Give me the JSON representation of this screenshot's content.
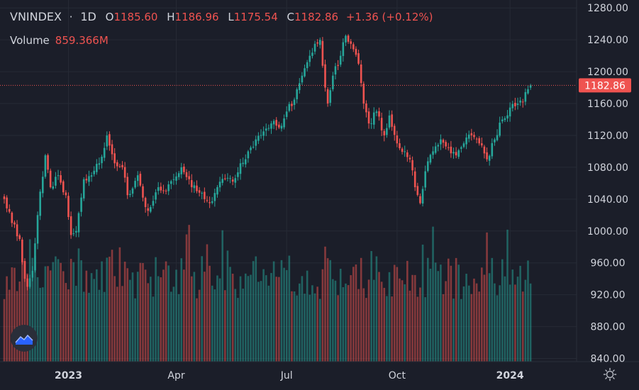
{
  "header": {
    "symbol": "VNINDEX",
    "separator": "·",
    "interval": "1D",
    "open_label": "O",
    "open_value": "1185.60",
    "high_label": "H",
    "high_value": "1186.96",
    "low_label": "L",
    "low_value": "1175.54",
    "close_label": "C",
    "close_value": "1182.86",
    "change": "+1.36 (+0.12%)"
  },
  "volume_legend": {
    "label": "Volume",
    "value": "859.366M"
  },
  "price_badge": "1182.86",
  "colors": {
    "background": "#1b1e29",
    "up": "#26a69a",
    "down": "#ef5350",
    "grid": "#262a35",
    "text": "#d1d4dc",
    "price_line": "#ef5350"
  },
  "icons": {
    "logo": "tradingview-logo-icon",
    "settings": "settings-gear-icon"
  },
  "chart_data": {
    "type": "candlestick",
    "title": "VNINDEX · 1D",
    "y_ticks": [
      1280,
      1240,
      1200,
      1160,
      1120,
      1080,
      1040,
      1000,
      960,
      920,
      880,
      840
    ],
    "y_tick_labels": [
      "1280.00",
      "1240.00",
      "1200.00",
      "1160.00",
      "1120.00",
      "1080.00",
      "1040.00",
      "1000.00",
      "960.00",
      "920.00",
      "880.00",
      "840.00"
    ],
    "ylim": [
      836,
      1290
    ],
    "x_ticks": [
      "2023",
      "Apr",
      "Jul",
      "Oct",
      "2024"
    ],
    "x_tick_bar_index": [
      25,
      67,
      110,
      153,
      197
    ],
    "last_close": 1182.86,
    "volume_scale_max": 1000,
    "anchors": [
      [
        0,
        1040
      ],
      [
        3,
        1010
      ],
      [
        6,
        990
      ],
      [
        8,
        940
      ],
      [
        9,
        930
      ],
      [
        11,
        950
      ],
      [
        13,
        1020
      ],
      [
        16,
        1095
      ],
      [
        18,
        1055
      ],
      [
        21,
        1070
      ],
      [
        24,
        1045
      ],
      [
        26,
        995
      ],
      [
        28,
        1000
      ],
      [
        31,
        1065
      ],
      [
        34,
        1070
      ],
      [
        37,
        1085
      ],
      [
        40,
        1120
      ],
      [
        43,
        1085
      ],
      [
        46,
        1080
      ],
      [
        48,
        1045
      ],
      [
        52,
        1070
      ],
      [
        55,
        1030
      ],
      [
        57,
        1030
      ],
      [
        60,
        1055
      ],
      [
        63,
        1050
      ],
      [
        66,
        1065
      ],
      [
        69,
        1080
      ],
      [
        72,
        1065
      ],
      [
        75,
        1050
      ],
      [
        78,
        1040
      ],
      [
        80,
        1035
      ],
      [
        83,
        1055
      ],
      [
        86,
        1065
      ],
      [
        89,
        1062
      ],
      [
        92,
        1085
      ],
      [
        95,
        1100
      ],
      [
        98,
        1115
      ],
      [
        101,
        1125
      ],
      [
        104,
        1135
      ],
      [
        107,
        1130
      ],
      [
        110,
        1150
      ],
      [
        113,
        1165
      ],
      [
        116,
        1195
      ],
      [
        119,
        1220
      ],
      [
        121,
        1235
      ],
      [
        123,
        1240
      ],
      [
        125,
        1180
      ],
      [
        126,
        1160
      ],
      [
        128,
        1195
      ],
      [
        131,
        1220
      ],
      [
        133,
        1245
      ],
      [
        135,
        1235
      ],
      [
        138,
        1210
      ],
      [
        140,
        1160
      ],
      [
        142,
        1135
      ],
      [
        145,
        1150
      ],
      [
        148,
        1120
      ],
      [
        150,
        1145
      ],
      [
        153,
        1110
      ],
      [
        156,
        1100
      ],
      [
        158,
        1090
      ],
      [
        160,
        1055
      ],
      [
        162,
        1035
      ],
      [
        164,
        1075
      ],
      [
        167,
        1100
      ],
      [
        170,
        1115
      ],
      [
        173,
        1105
      ],
      [
        176,
        1095
      ],
      [
        179,
        1110
      ],
      [
        182,
        1120
      ],
      [
        185,
        1110
      ],
      [
        188,
        1090
      ],
      [
        191,
        1115
      ],
      [
        194,
        1140
      ],
      [
        197,
        1155
      ],
      [
        200,
        1160
      ],
      [
        202,
        1162
      ],
      [
        204,
        1178
      ],
      [
        205,
        1182.86
      ]
    ]
  }
}
